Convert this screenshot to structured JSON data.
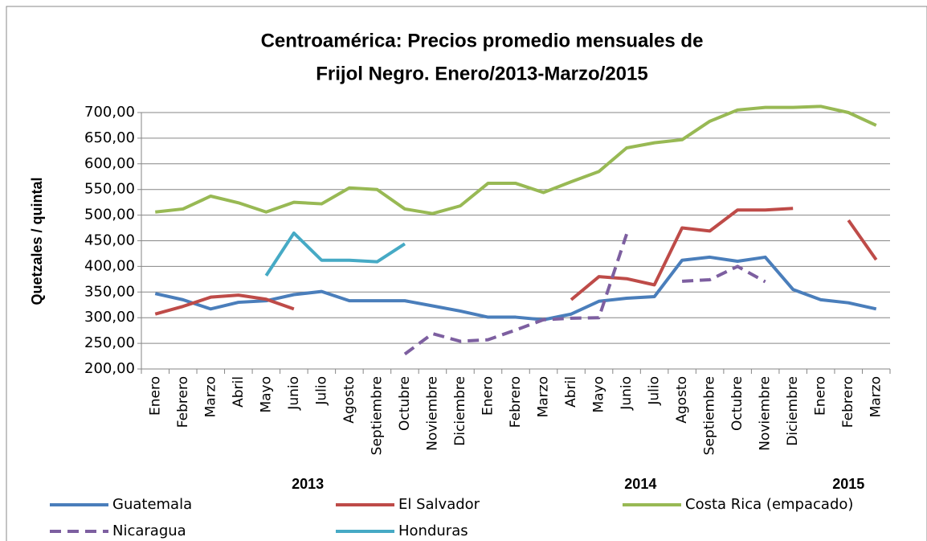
{
  "chart_data": {
    "type": "line",
    "title": [
      "Centroamérica: Precios promedio mensuales de",
      "Frijol Negro. Enero/2013-Marzo/2015"
    ],
    "y_label": "Quetzales / quintal",
    "categories": [
      "Enero",
      "Febrero",
      "Marzo",
      "Abril",
      "Mayo",
      "Junio",
      "Julio",
      "Agosto",
      "Septiembre",
      "Octubre",
      "Noviembre",
      "Diciembre",
      "Enero",
      "Febrero",
      "Marzo",
      "Abril",
      "Mayo",
      "Junio",
      "Julio",
      "Agosto",
      "Septiembre",
      "Octubre",
      "Noviembre",
      "Diciembre",
      "Enero",
      "Febrero",
      "Marzo"
    ],
    "x_groups": [
      {
        "label": "2013",
        "categories": 12
      },
      {
        "label": "2014",
        "categories": 12
      },
      {
        "label": "2015",
        "categories": 3
      }
    ],
    "ylim": [
      200,
      700
    ],
    "yticks": [
      {
        "value": 200,
        "label": "200,00"
      },
      {
        "value": 250,
        "label": "250,00"
      },
      {
        "value": 300,
        "label": "300,00"
      },
      {
        "value": 350,
        "label": "350,00"
      },
      {
        "value": 400,
        "label": "400,00"
      },
      {
        "value": 450,
        "label": "450,00"
      },
      {
        "value": 500,
        "label": "500,00"
      },
      {
        "value": 550,
        "label": "550,00"
      },
      {
        "value": 600,
        "label": "600,00"
      },
      {
        "value": 650,
        "label": "650,00"
      },
      {
        "value": 700,
        "label": "700,00"
      }
    ],
    "grid": true,
    "series": [
      {
        "name": "Guatemala",
        "color": "#4a7ebb",
        "dash": false,
        "values": [
          347,
          335,
          317,
          330,
          333,
          345,
          351,
          333,
          333,
          333,
          323,
          313,
          301,
          301,
          296,
          307,
          332,
          338,
          341,
          412,
          418,
          410,
          418,
          355,
          335,
          329,
          317
        ]
      },
      {
        "name": "El Salvador",
        "color": "#be4b48",
        "dash": false,
        "values": [
          307,
          322,
          340,
          344,
          336,
          317,
          null,
          null,
          null,
          null,
          null,
          null,
          null,
          null,
          null,
          335,
          380,
          376,
          364,
          475,
          469,
          510,
          510,
          513,
          null,
          490,
          413
        ]
      },
      {
        "name": "Costa Rica (empacado)",
        "color": "#98b954",
        "dash": false,
        "values": [
          506,
          512,
          537,
          524,
          506,
          525,
          522,
          553,
          550,
          512,
          503,
          518,
          562,
          562,
          544,
          565,
          585,
          631,
          641,
          647,
          683,
          705,
          710,
          710,
          712,
          700,
          675
        ]
      },
      {
        "name": "Nicaragua",
        "color": "#7d5fa0",
        "dash": true,
        "values": [
          null,
          null,
          null,
          null,
          null,
          null,
          null,
          null,
          null,
          229,
          269,
          254,
          257,
          276,
          296,
          299,
          300,
          463,
          null,
          371,
          374,
          400,
          370,
          null,
          null,
          null,
          null
        ]
      },
      {
        "name": "Honduras",
        "color": "#46aac5",
        "dash": false,
        "values": [
          null,
          null,
          null,
          null,
          382,
          465,
          412,
          412,
          409,
          444,
          null,
          null,
          null,
          null,
          null,
          null,
          null,
          null,
          null,
          null,
          null,
          null,
          null,
          null,
          null,
          null,
          null
        ]
      }
    ]
  }
}
